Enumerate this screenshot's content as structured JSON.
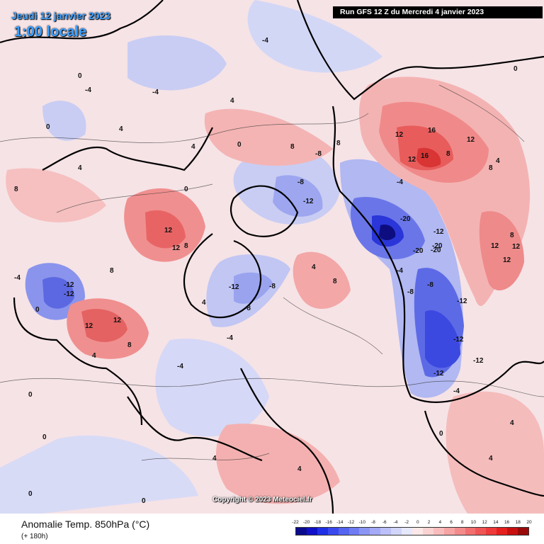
{
  "header": {
    "date_title": "Jeudi 12 janvier 2023",
    "time_title": "1:00 locale",
    "run_info": "Run GFS 12 Z du Mercredi 4 janvier 2023"
  },
  "map": {
    "copyright": "Copyright © 2023 Meteociel.fr",
    "background_color": "#e7ecf7",
    "contour_labels": [
      "-20",
      "-16",
      "-12",
      "-8",
      "-4",
      "0",
      "4",
      "8",
      "12",
      "16"
    ]
  },
  "footer": {
    "title": "Anomalie Temp. 850hPa (°C)",
    "subtitle": "(+ 180h)"
  },
  "legend": {
    "ticks": [
      "-22",
      "-20",
      "-18",
      "-16",
      "-14",
      "-12",
      "-10",
      "-8",
      "-6",
      "-4",
      "-2",
      "0",
      "2",
      "4",
      "6",
      "8",
      "10",
      "12",
      "14",
      "16",
      "18",
      "20"
    ],
    "colors": [
      "#0a0a8c",
      "#1010c8",
      "#1f2fe6",
      "#3a49ee",
      "#5565f0",
      "#6f7cf2",
      "#8b95f4",
      "#a4aaf6",
      "#bcc0f8",
      "#d2d5fa",
      "#e6e8fc",
      "#fce8e8",
      "#fad2d2",
      "#f8bcbc",
      "#f6a4a4",
      "#f48b8b",
      "#f26f6f",
      "#f05555",
      "#ee3a3a",
      "#e61f1f",
      "#c81010",
      "#9a0a0a"
    ]
  }
}
